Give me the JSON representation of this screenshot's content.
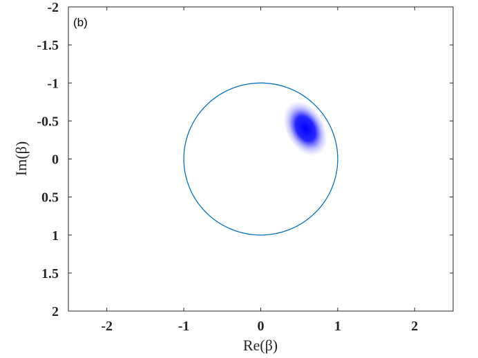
{
  "chart_data": {
    "type": "heatmap",
    "panel_label": "(b)",
    "xlabel": "Re(β)",
    "ylabel": "Im(β)",
    "xlim": [
      -2.5,
      2.5
    ],
    "ylim": [
      -2,
      2
    ],
    "y_axis_reversed": true,
    "x_ticks": [
      -2,
      -1,
      0,
      1,
      2
    ],
    "x_tick_labels": [
      "-2",
      "-1",
      "0",
      "1",
      "2"
    ],
    "y_ticks": [
      -2,
      -1.5,
      -1,
      -0.5,
      0,
      0.5,
      1,
      1.5,
      2
    ],
    "y_tick_labels": [
      "-2",
      "-1.5",
      "-1",
      "-0.5",
      "0",
      "0.5",
      "1",
      "1.5",
      "2"
    ],
    "grid": false,
    "colors": {
      "circle": "#0072BD",
      "blob": "#0000FF",
      "axes": "#262626",
      "background": "#FFFFFF"
    },
    "unit_circle": {
      "center": [
        0,
        0
      ],
      "radius": 1
    },
    "distribution": {
      "center": [
        0.58,
        -0.4
      ],
      "sigma_major": 0.12,
      "sigma_minor": 0.07,
      "rotation_deg": 62,
      "peak_color": "#0000FF"
    }
  }
}
